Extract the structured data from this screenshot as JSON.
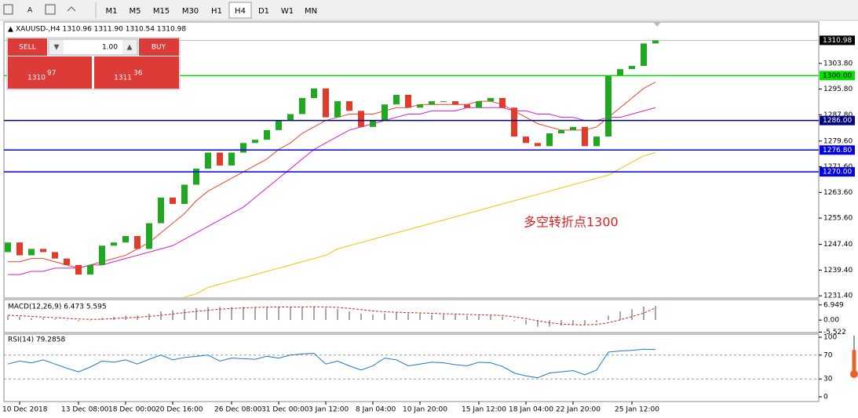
{
  "toolbar": {
    "timeframes": [
      "M1",
      "M5",
      "M15",
      "M30",
      "H1",
      "H4",
      "D1",
      "W1",
      "MN"
    ],
    "active": "H4"
  },
  "trade_panel": {
    "sell": "SELL",
    "buy": "BUY",
    "lots": "1.00",
    "bid_big": "1310",
    "bid_small": "97",
    "ask_big": "1311",
    "ask_small": "36"
  },
  "chart_data": [
    {
      "type": "candlestick",
      "title": "XAUUSD-,H4 1310.96 1311.90 1310.54 1310.98",
      "annotation": "多空转折点1300",
      "categories": [
        null,
        "10 Dec 2018",
        null,
        null,
        null,
        null,
        "13 Dec 08:00",
        null,
        null,
        null,
        "18 Dec 00:00",
        null,
        null,
        null,
        "20 Dec 16:00",
        null,
        null,
        null,
        null,
        "26 Dec 08:00",
        null,
        null,
        null,
        "31 Dec 00:00",
        null,
        null,
        null,
        "3 Jan 12:00",
        null,
        null,
        null,
        "8 Jan 04:00",
        null,
        null,
        null,
        "10 Jan 20:00",
        null,
        null,
        null,
        null,
        "15 Jan 12:00",
        null,
        null,
        null,
        "18 Jan 04:00",
        null,
        null,
        null,
        "22 Jan 20:00",
        null,
        null,
        null,
        null,
        "25 Jan 12:00",
        null,
        null
      ],
      "open": [
        1245,
        1248,
        1244,
        1246,
        1245,
        1243,
        1241,
        1238,
        1241,
        1247,
        1248,
        1250,
        1246,
        1254,
        1262,
        1260,
        1266,
        1271,
        1276,
        1272,
        1276,
        1279,
        1280,
        1283,
        1286,
        1288,
        1293,
        1296,
        1287,
        1292,
        1289,
        1284,
        1286,
        1291,
        1294,
        1290,
        1291,
        1292,
        1292,
        1291,
        1290,
        1292,
        1293,
        1290,
        1281,
        1279,
        1278,
        1282,
        1283,
        1284,
        1278,
        1281,
        1300,
        1302,
        1303,
        1310
      ],
      "values": [
        1248,
        1244,
        1246,
        1245,
        1243,
        1241,
        1238,
        1241,
        1247,
        1248,
        1250,
        1246,
        1254,
        1262,
        1260,
        1266,
        1271,
        1276,
        1272,
        1276,
        1279,
        1280,
        1283,
        1286,
        1288,
        1293,
        1296,
        1287,
        1292,
        1289,
        1284,
        1286,
        1291,
        1294,
        1290,
        1291,
        1292,
        1292,
        1291,
        1290,
        1292,
        1293,
        1290,
        1281,
        1279,
        1278,
        1282,
        1283,
        1284,
        1278,
        1281,
        1300,
        1302,
        1303,
        1310,
        1310.98
      ],
      "up_color": "#21a821",
      "down_color": "#e23b2a",
      "overlays": [
        {
          "color": "#e8462a",
          "values": [
            1242,
            1242,
            1243,
            1243,
            1242,
            1241,
            1240,
            1241,
            1242,
            1243,
            1244,
            1246,
            1248,
            1251,
            1254,
            1257,
            1261,
            1264,
            1266,
            1268,
            1270,
            1272,
            1274,
            1277,
            1279,
            1282,
            1284,
            1286,
            1287,
            1288,
            1288,
            1288,
            1289,
            1290,
            1290,
            1291,
            1291,
            1291,
            1291,
            1291,
            1292,
            1292,
            1291,
            1289,
            1287,
            1285,
            1284,
            1283,
            1283,
            1283,
            1284,
            1287,
            1290,
            1293,
            1296,
            1298
          ]
        },
        {
          "color": "#d21fd2",
          "values": [
            1238,
            1238,
            1239,
            1239,
            1240,
            1240,
            1240,
            1241,
            1241,
            1242,
            1243,
            1244,
            1245,
            1246,
            1247,
            1249,
            1251,
            1253,
            1255,
            1257,
            1259,
            1262,
            1265,
            1268,
            1271,
            1274,
            1277,
            1279,
            1281,
            1283,
            1284,
            1285,
            1286,
            1287,
            1288,
            1288,
            1289,
            1289,
            1289,
            1290,
            1290,
            1290,
            1290,
            1289,
            1289,
            1288,
            1288,
            1287,
            1287,
            1286,
            1286,
            1287,
            1287,
            1288,
            1289,
            1290
          ]
        },
        {
          "color": "#f5c400",
          "values": [
            null,
            null,
            null,
            null,
            null,
            null,
            null,
            null,
            null,
            null,
            null,
            null,
            null,
            null,
            null,
            1231,
            1232,
            1234,
            1235,
            1236,
            1237,
            1238,
            1239,
            1240,
            1241,
            1242,
            1243,
            1244,
            1246,
            1247,
            1248,
            1249,
            1250,
            1251,
            1252,
            1253,
            1254,
            1255,
            1256,
            1257,
            1258,
            1259,
            1260,
            1261,
            1262,
            1263,
            1264,
            1265,
            1266,
            1267,
            1268,
            1269,
            1271,
            1273,
            1275,
            1276
          ]
        }
      ],
      "levels": [
        {
          "value": 1300,
          "label": "1300.00",
          "color": "#00e000"
        },
        {
          "value": 1286,
          "label": "1286.00",
          "color": "#000080"
        },
        {
          "value": 1276.8,
          "label": "1276.80",
          "color": "#0000e0"
        },
        {
          "value": 1270,
          "label": "1270.00",
          "color": "#0000e0"
        }
      ],
      "last": {
        "value": 1310.98,
        "label": "1310.98"
      },
      "ylim": [
        1230.7,
        1316.7
      ],
      "yticks": [
        {
          "value": 1303.8,
          "label": "1303.80"
        },
        {
          "value": 1295.8,
          "label": "1295.80"
        },
        {
          "value": 1287.8,
          "label": "1287.80"
        },
        {
          "value": 1279.6,
          "label": "1279.60"
        },
        {
          "value": 1271.6,
          "label": "1271.60"
        },
        {
          "value": 1263.6,
          "label": "1263.60"
        },
        {
          "value": 1255.6,
          "label": "1255.60"
        },
        {
          "value": 1247.4,
          "label": "1247.40"
        },
        {
          "value": 1239.4,
          "label": "1239.40"
        },
        {
          "value": 1231.4,
          "label": "1231.40"
        }
      ]
    },
    {
      "type": "bar",
      "title": "MACD(12,26,9) 6.473 5.595",
      "color": "#a8a8a8",
      "values": [
        2,
        1.5,
        1,
        1,
        0.5,
        0,
        -0.5,
        0,
        1,
        1.5,
        2,
        2,
        3,
        4,
        4.5,
        5,
        5.5,
        6,
        6,
        6,
        6,
        6,
        6,
        6,
        6,
        6,
        6.3,
        5.5,
        5,
        4,
        3,
        2.5,
        3,
        3.5,
        3,
        3,
        2.5,
        2.5,
        2.5,
        2,
        2,
        2,
        1.5,
        -0.5,
        -2,
        -3,
        -3,
        -2.5,
        -2,
        -2,
        -1,
        2,
        4,
        5,
        6.2,
        6.5
      ],
      "signal": {
        "color": "#e02020",
        "values": [
          2.2,
          2,
          1.7,
          1.4,
          1.1,
          0.8,
          0.5,
          0.3,
          0.4,
          0.7,
          1,
          1.3,
          1.7,
          2.2,
          2.8,
          3.4,
          4,
          4.5,
          5,
          5.3,
          5.6,
          5.8,
          5.9,
          6,
          6,
          6,
          6.1,
          6,
          5.8,
          5.4,
          4.8,
          4.2,
          3.8,
          3.6,
          3.4,
          3.3,
          3.1,
          2.9,
          2.8,
          2.6,
          2.4,
          2.3,
          2.1,
          1.5,
          0.7,
          -0.3,
          -1.2,
          -1.8,
          -2.1,
          -2.2,
          -2,
          -1.2,
          0.1,
          1.6,
          3.2,
          5.6
        ]
      },
      "ylim": [
        -5.7,
        9.4
      ],
      "yticks": [
        {
          "value": 6.949,
          "label": "6.949"
        },
        {
          "value": 0,
          "label": "0.00"
        },
        {
          "value": -5.522,
          "label": "-5.522"
        }
      ]
    },
    {
      "type": "line",
      "title": "RSI(14) 79.2858",
      "color": "#1f78d0",
      "values": [
        55,
        60,
        57,
        62,
        55,
        48,
        42,
        50,
        60,
        58,
        62,
        55,
        63,
        70,
        62,
        66,
        68,
        70,
        60,
        65,
        64,
        63,
        68,
        65,
        70,
        72,
        73,
        55,
        60,
        52,
        45,
        52,
        65,
        62,
        52,
        55,
        58,
        57,
        54,
        52,
        58,
        57,
        51,
        40,
        35,
        32,
        40,
        42,
        44,
        37,
        45,
        75,
        77,
        78,
        80,
        79.2858
      ],
      "levels": [
        70,
        30
      ],
      "ylim": [
        0,
        100
      ],
      "yticks": [
        100,
        70,
        30,
        0
      ]
    }
  ]
}
